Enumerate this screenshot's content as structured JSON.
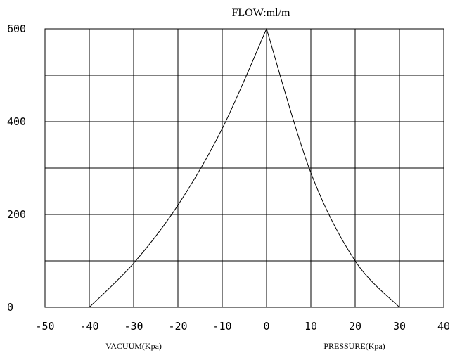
{
  "chart_data": {
    "type": "line",
    "title": "FLOW:ml/m",
    "xlabel_left": "VACUUM(Kpa)",
    "xlabel_right": "PRESSURE(Kpa)",
    "xlim": [
      -50,
      40
    ],
    "ylim": [
      0,
      600
    ],
    "x_ticks": [
      "-50",
      "-40",
      "-30",
      "-20",
      "-10",
      "0",
      "10",
      "20",
      "30",
      "40"
    ],
    "y_ticks": [
      "0",
      "200",
      "400",
      "600"
    ],
    "grid": true,
    "series": [
      {
        "x": [
          -40,
          -30,
          -20,
          -10,
          0,
          10,
          20,
          30
        ],
        "values": [
          0,
          95,
          220,
          385,
          600,
          290,
          100,
          0
        ]
      }
    ]
  }
}
